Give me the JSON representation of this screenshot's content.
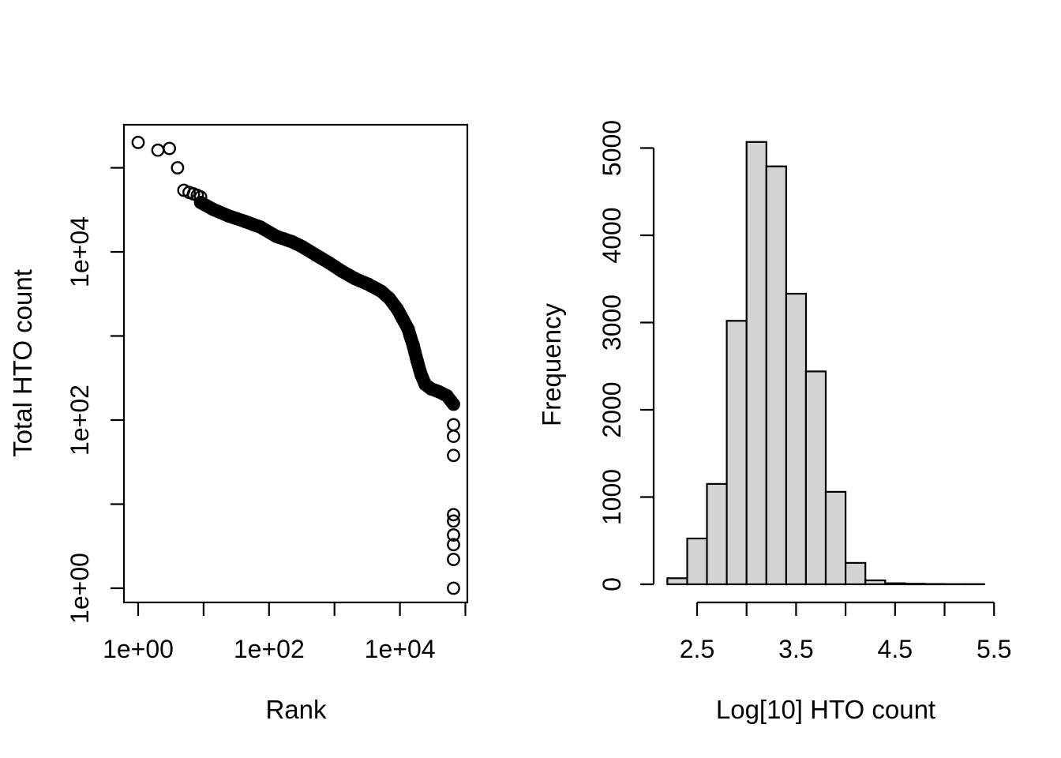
{
  "figure": {
    "description": "Two-panel R base graphics figure: HTO count rank plot and histogram of log10 HTO counts",
    "background_color": "#ffffff",
    "foreground_color": "#000000"
  },
  "chart_data": [
    {
      "type": "scatter",
      "title": "",
      "xlabel": "Rank",
      "ylabel": "Total HTO count",
      "xscale": "log10",
      "yscale": "log10",
      "xlim": [
        0.6,
        110000
      ],
      "ylim": [
        0.68,
        325000
      ],
      "grid": false,
      "marker": "open-circle",
      "marker_color": "#000000",
      "x_ticks": [
        {
          "value": 1,
          "label": "1e+00"
        },
        {
          "value": 10,
          "label": ""
        },
        {
          "value": 100,
          "label": "1e+02"
        },
        {
          "value": 1000,
          "label": ""
        },
        {
          "value": 10000,
          "label": "1e+04"
        },
        {
          "value": 100000,
          "label": ""
        }
      ],
      "y_ticks": [
        {
          "value": 1,
          "label": "1e+00"
        },
        {
          "value": 10,
          "label": ""
        },
        {
          "value": 100,
          "label": "1e+02"
        },
        {
          "value": 1000,
          "label": ""
        },
        {
          "value": 10000,
          "label": "1e+04"
        },
        {
          "value": 100000,
          "label": ""
        }
      ],
      "head_points": [
        [
          1,
          200000
        ],
        [
          2,
          162000
        ],
        [
          3,
          170000
        ],
        [
          4,
          100000
        ],
        [
          5,
          54000
        ],
        [
          6,
          51000
        ],
        [
          7,
          49000
        ],
        [
          8,
          47000
        ],
        [
          9,
          45000
        ]
      ],
      "curve_points": [
        [
          9,
          38700
        ],
        [
          14,
          32000
        ],
        [
          24,
          26800
        ],
        [
          43,
          23000
        ],
        [
          74,
          19700
        ],
        [
          129,
          15300
        ],
        [
          225,
          13200
        ],
        [
          323,
          11500
        ],
        [
          518,
          9200
        ],
        [
          828,
          7400
        ],
        [
          1290,
          5900
        ],
        [
          2070,
          4800
        ],
        [
          3320,
          4100
        ],
        [
          5180,
          3400
        ],
        [
          6870,
          2800
        ],
        [
          9080,
          2100
        ],
        [
          11000,
          1600
        ],
        [
          13400,
          1200
        ],
        [
          14500,
          970
        ],
        [
          15900,
          780
        ],
        [
          18300,
          505
        ],
        [
          21100,
          345
        ],
        [
          24300,
          266
        ],
        [
          30000,
          235
        ],
        [
          39000,
          218
        ],
        [
          52000,
          195
        ],
        [
          66000,
          154
        ]
      ],
      "tail_points": [
        [
          66000,
          88
        ],
        [
          66000,
          64
        ],
        [
          66000,
          38
        ],
        [
          66000,
          7.5
        ],
        [
          66000,
          6.3
        ],
        [
          66000,
          4.3
        ],
        [
          66000,
          3.3
        ],
        [
          66000,
          2.2
        ],
        [
          66000,
          1
        ]
      ]
    },
    {
      "type": "histogram",
      "title": "",
      "xlabel": "Log[10] HTO count",
      "ylabel": "Frequency",
      "bin_start": 2.2,
      "bin_width": 0.2,
      "counts": [
        70,
        525,
        1150,
        3020,
        5070,
        4790,
        3330,
        2440,
        1060,
        245,
        45,
        12,
        6,
        4,
        2,
        2
      ],
      "xlim": [
        2.5,
        5.5
      ],
      "ylim": [
        0,
        5000
      ],
      "grid": false,
      "bar_fill": "#d3d3d3",
      "bar_stroke": "#000000",
      "x_ticks": [
        {
          "value": 2.5,
          "label": "2.5"
        },
        {
          "value": 3.0,
          "label": ""
        },
        {
          "value": 3.5,
          "label": "3.5"
        },
        {
          "value": 4.0,
          "label": ""
        },
        {
          "value": 4.5,
          "label": "4.5"
        },
        {
          "value": 5.0,
          "label": ""
        },
        {
          "value": 5.5,
          "label": "5.5"
        }
      ],
      "y_ticks": [
        {
          "value": 0,
          "label": "0"
        },
        {
          "value": 1000,
          "label": "1000"
        },
        {
          "value": 2000,
          "label": "2000"
        },
        {
          "value": 3000,
          "label": "3000"
        },
        {
          "value": 4000,
          "label": "4000"
        },
        {
          "value": 5000,
          "label": "5000"
        }
      ]
    }
  ]
}
